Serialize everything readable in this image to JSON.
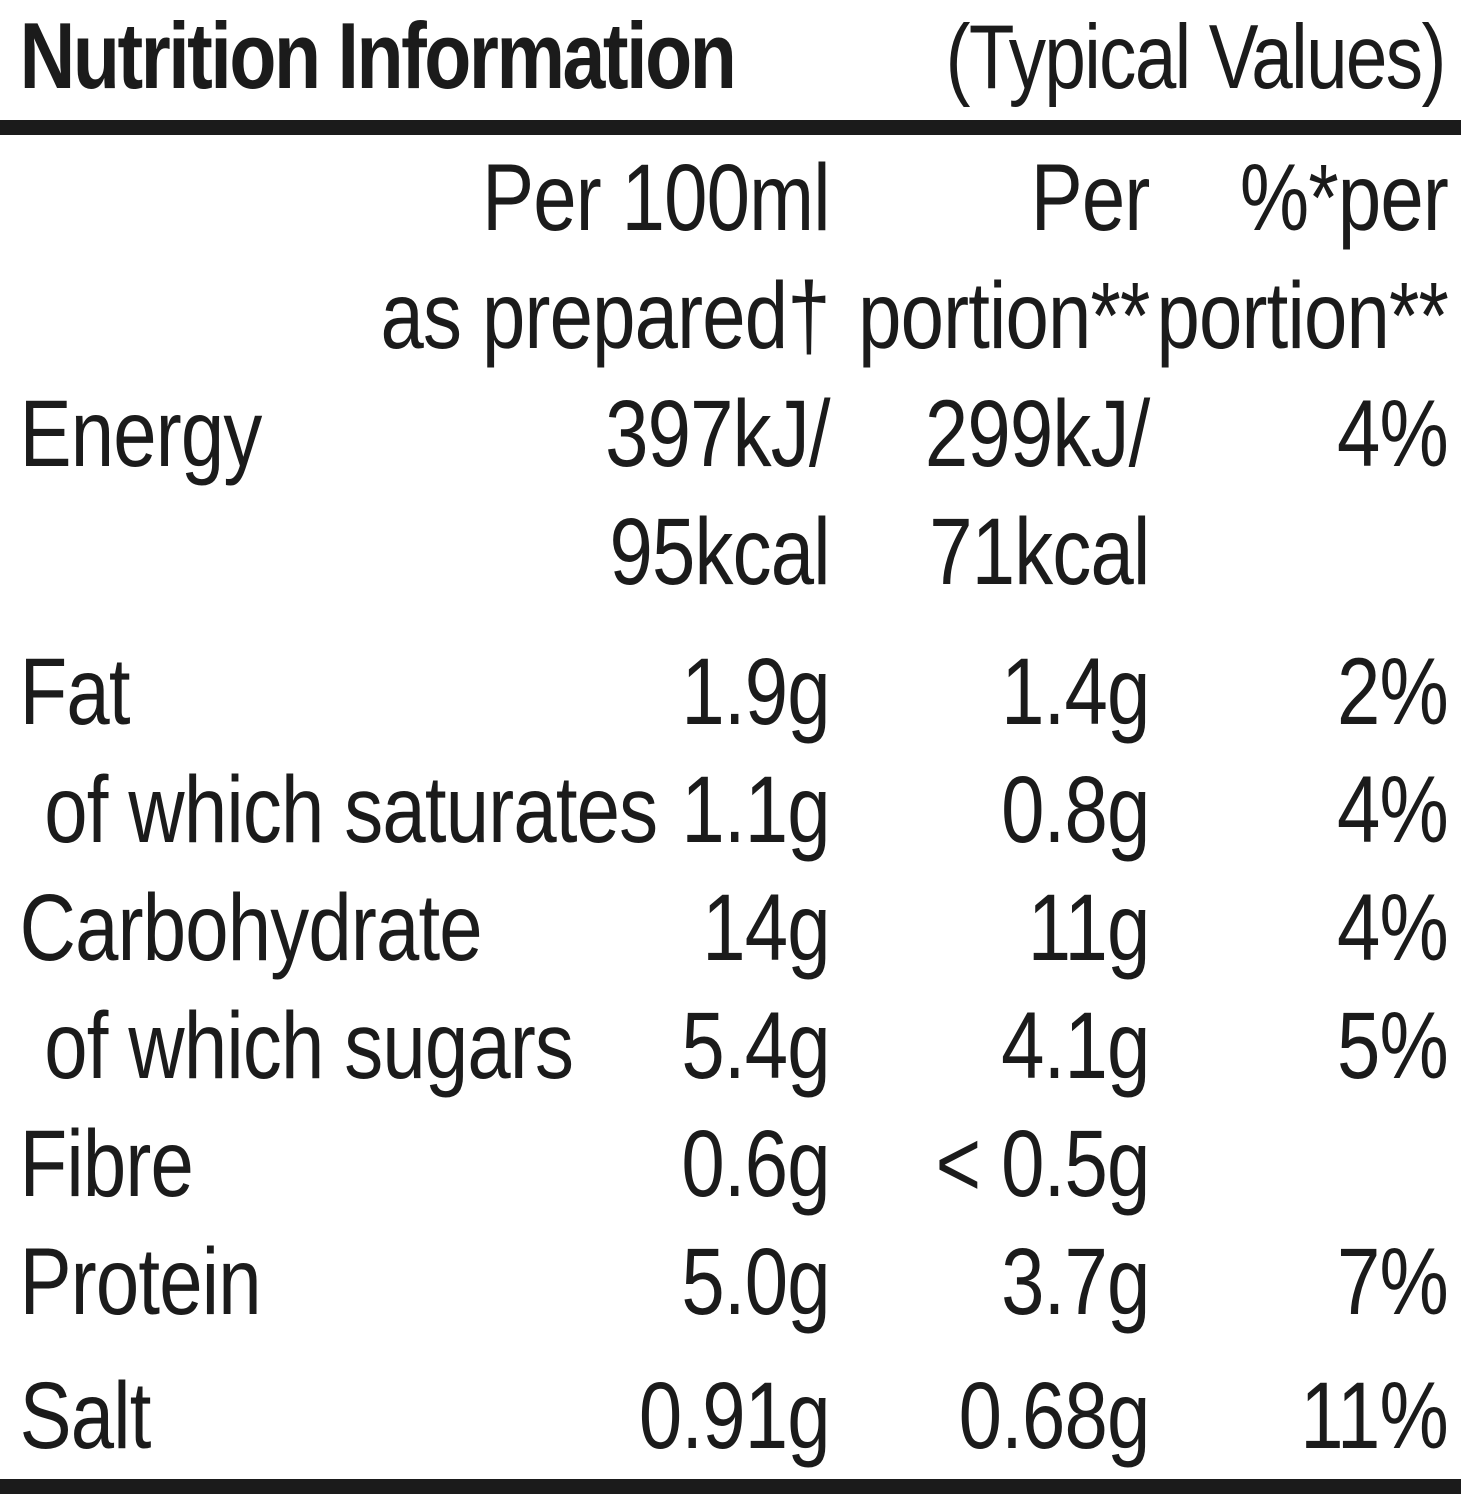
{
  "title": {
    "main": "Nutrition Information",
    "qualifier": "(Typical Values)"
  },
  "table": {
    "header": {
      "per_100ml": [
        "Per 100ml",
        "as prepared†"
      ],
      "per_portion": [
        "Per",
        "portion**"
      ],
      "percent_per_portion": [
        "%*per",
        "portion**"
      ]
    },
    "rows": [
      {
        "label": "Energy",
        "per_100ml": [
          "397kJ/",
          "95kcal"
        ],
        "per_portion": [
          "299kJ/",
          "71kcal"
        ],
        "percent": "4%"
      },
      {
        "label": "Fat",
        "per_100ml": "1.9g",
        "per_portion": "1.4g",
        "percent": "2%"
      },
      {
        "label": "of which saturates",
        "per_100ml": "1.1g",
        "per_portion": "0.8g",
        "percent": "4%"
      },
      {
        "label": "Carbohydrate",
        "per_100ml": "14g",
        "per_portion": "11g",
        "percent": "4%"
      },
      {
        "label": "of which sugars",
        "per_100ml": "5.4g",
        "per_portion": "4.1g",
        "percent": "5%"
      },
      {
        "label": "Fibre",
        "per_100ml": "0.6g",
        "per_portion": "< 0.5g",
        "percent": ""
      },
      {
        "label": "Protein",
        "per_100ml": "5.0g",
        "per_portion": "3.7g",
        "percent": "7%"
      },
      {
        "label": "Salt",
        "per_100ml": "0.91g",
        "per_portion": "0.68g",
        "percent": "11%"
      }
    ]
  },
  "colors": {
    "text": "#1b1b1b",
    "rule": "#1b1b1b",
    "background": "#ffffff"
  }
}
